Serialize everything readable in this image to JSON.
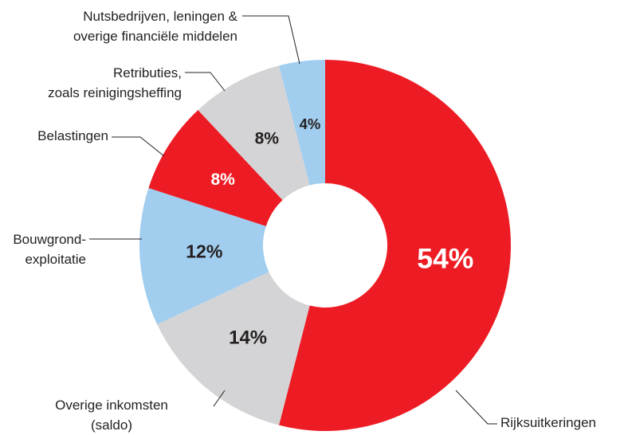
{
  "chart_data": {
    "type": "donut",
    "categories": [
      "Rijksuitkeringen",
      "Overige inkomsten\n(saldo)",
      "Bouwgrond-\nexploitatie",
      "Belastingen",
      "Retributies,\nzoals reinigingsheffing",
      "Nutsbedrijven, leningen &\noverige financiële middelen"
    ],
    "values": [
      54,
      14,
      12,
      8,
      8,
      4
    ],
    "value_labels": [
      "54%",
      "14%",
      "12%",
      "8%",
      "8%",
      "4%"
    ],
    "colors": [
      "#ed1c24",
      "#d4d4d6",
      "#a1cdef",
      "#ed1c24",
      "#d4d4d6",
      "#a1cdef"
    ]
  }
}
